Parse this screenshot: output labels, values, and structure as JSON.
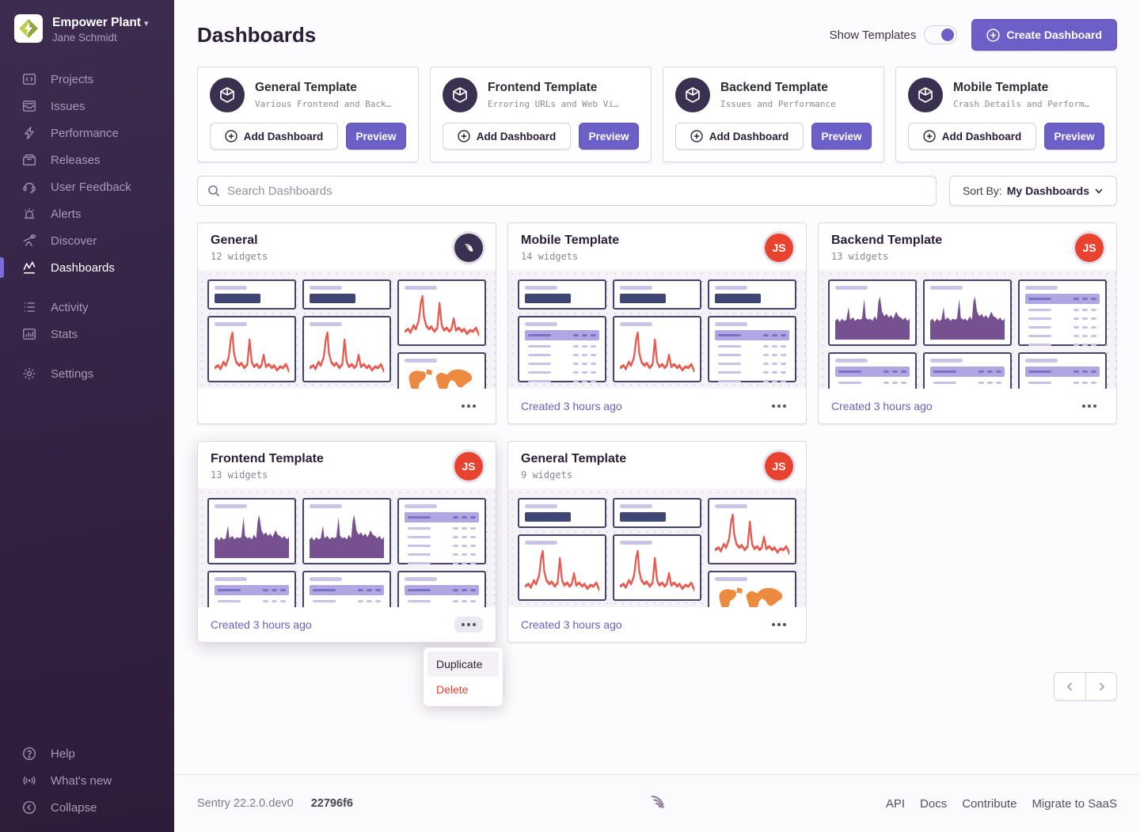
{
  "sidebar": {
    "org": {
      "name": "Empower Plant",
      "user": "Jane Schmidt"
    },
    "items": [
      {
        "label": "Projects",
        "icon": "projects-icon",
        "active": false
      },
      {
        "label": "Issues",
        "icon": "issues-icon",
        "active": false
      },
      {
        "label": "Performance",
        "icon": "performance-icon",
        "active": false
      },
      {
        "label": "Releases",
        "icon": "releases-icon",
        "active": false
      },
      {
        "label": "User Feedback",
        "icon": "user-feedback-icon",
        "active": false
      },
      {
        "label": "Alerts",
        "icon": "alerts-icon",
        "active": false
      },
      {
        "label": "Discover",
        "icon": "discover-icon",
        "active": false
      },
      {
        "label": "Dashboards",
        "icon": "dashboards-icon",
        "active": true
      }
    ],
    "secondary": [
      {
        "label": "Activity",
        "icon": "activity-icon",
        "active": false
      },
      {
        "label": "Stats",
        "icon": "stats-icon",
        "active": false
      }
    ],
    "tertiary": [
      {
        "label": "Settings",
        "icon": "settings-icon",
        "active": false
      }
    ],
    "bottom": [
      {
        "label": "Help",
        "icon": "help-icon",
        "active": false
      },
      {
        "label": "What's new",
        "icon": "whats-new-icon",
        "active": false
      },
      {
        "label": "Collapse",
        "icon": "collapse-icon",
        "active": false
      }
    ]
  },
  "header": {
    "title": "Dashboards",
    "show_templates_label": "Show Templates",
    "toggle_on": true,
    "create_label": "Create Dashboard"
  },
  "templates": [
    {
      "title": "General Template",
      "subtitle": "Various Frontend and Back…",
      "add_label": "Add Dashboard",
      "preview_label": "Preview"
    },
    {
      "title": "Frontend Template",
      "subtitle": "Erroring URLs and Web Vi…",
      "add_label": "Add Dashboard",
      "preview_label": "Preview"
    },
    {
      "title": "Backend Template",
      "subtitle": "Issues and Performance",
      "add_label": "Add Dashboard",
      "preview_label": "Preview"
    },
    {
      "title": "Mobile Template",
      "subtitle": "Crash Details and Perform…",
      "add_label": "Add Dashboard",
      "preview_label": "Preview"
    }
  ],
  "filters": {
    "search_placeholder": "Search Dashboards",
    "sort_label": "Sort By:",
    "sort_value": "My Dashboards"
  },
  "dashboard_cards": [
    {
      "title": "General",
      "widget_count": "12 widgets",
      "avatar": "sentry",
      "avatar_initials": "",
      "created": "",
      "menu_open": false,
      "columns": [
        [
          "big",
          "line",
          "table"
        ],
        [
          "big",
          "line",
          "table"
        ],
        [
          "line",
          "map"
        ]
      ]
    },
    {
      "title": "Mobile Template",
      "widget_count": "14 widgets",
      "avatar": "user",
      "avatar_initials": "JS",
      "created": "Created 3 hours ago",
      "menu_open": false,
      "columns": [
        [
          "big",
          "table",
          "table"
        ],
        [
          "big",
          "line",
          "table"
        ],
        [
          "big",
          "table",
          "table"
        ]
      ]
    },
    {
      "title": "Backend Template",
      "widget_count": "13 widgets",
      "avatar": "user",
      "avatar_initials": "JS",
      "created": "Created 3 hours ago",
      "menu_open": false,
      "columns": [
        [
          "area",
          "table"
        ],
        [
          "area",
          "table"
        ],
        [
          "table",
          "table"
        ]
      ]
    },
    {
      "title": "Frontend Template",
      "widget_count": "13 widgets",
      "avatar": "user",
      "avatar_initials": "JS",
      "created": "Created 3 hours ago",
      "menu_open": true,
      "columns": [
        [
          "area",
          "table"
        ],
        [
          "area",
          "table"
        ],
        [
          "table",
          "table"
        ]
      ]
    },
    {
      "title": "General Template",
      "widget_count": "9 widgets",
      "avatar": "user",
      "avatar_initials": "JS",
      "created": "Created 3 hours ago",
      "menu_open": false,
      "columns": [
        [
          "big",
          "line",
          "table"
        ],
        [
          "big",
          "line",
          "table"
        ],
        [
          "line",
          "map"
        ]
      ]
    }
  ],
  "context_menu": {
    "items": [
      {
        "label": "Duplicate",
        "danger": false,
        "highlighted": true
      },
      {
        "label": "Delete",
        "danger": true,
        "highlighted": false
      }
    ]
  },
  "footer": {
    "version": "Sentry 22.2.0.dev0",
    "build": "22796f6",
    "links": [
      "API",
      "Docs",
      "Contribute",
      "Migrate to SaaS"
    ]
  },
  "colors": {
    "accent": "#6c5fc7",
    "sidebar_bg": "#34223f",
    "avatar_red": "#e8432e",
    "chart_line_red": "#e8594f",
    "chart_area_purple": "#76518f",
    "map_orange": "#ec8a3f",
    "widget_border": "#45436b",
    "danger": "#e2432c"
  }
}
